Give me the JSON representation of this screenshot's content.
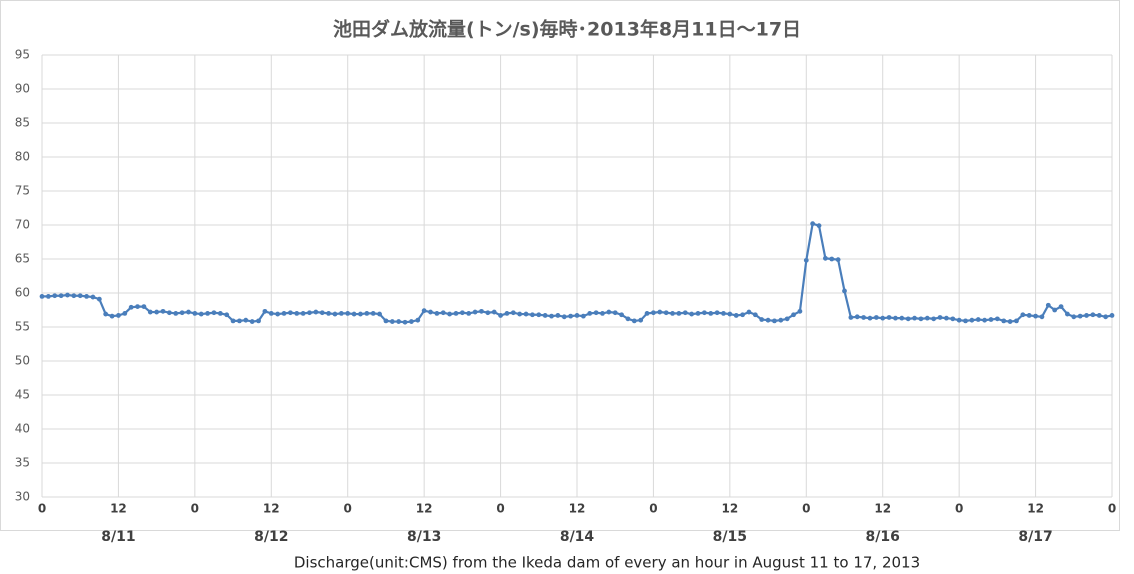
{
  "chart_data": {
    "type": "line",
    "title": "池田ダム放流量(トン/s)毎時･2013年8月11日～17日",
    "caption": "Discharge(unit:CMS) from the Ikeda dam of every an hour in August 11 to 17, 2013",
    "categories": [
      "0",
      null,
      null,
      null,
      null,
      null,
      null,
      null,
      null,
      null,
      null,
      null,
      "12",
      null,
      null,
      null,
      null,
      null,
      null,
      null,
      null,
      null,
      null,
      null,
      "0",
      null,
      null,
      null,
      null,
      null,
      null,
      null,
      null,
      null,
      null,
      null,
      "12",
      null,
      null,
      null,
      null,
      null,
      null,
      null,
      null,
      null,
      null,
      null,
      "0",
      null,
      null,
      null,
      null,
      null,
      null,
      null,
      null,
      null,
      null,
      null,
      "12",
      null,
      null,
      null,
      null,
      null,
      null,
      null,
      null,
      null,
      null,
      null,
      "0",
      null,
      null,
      null,
      null,
      null,
      null,
      null,
      null,
      null,
      null,
      null,
      "12",
      null,
      null,
      null,
      null,
      null,
      null,
      null,
      null,
      null,
      null,
      null,
      "0",
      null,
      null,
      null,
      null,
      null,
      null,
      null,
      null,
      null,
      null,
      null,
      "12",
      null,
      null,
      null,
      null,
      null,
      null,
      null,
      null,
      null,
      null,
      null,
      "0",
      null,
      null,
      null,
      null,
      null,
      null,
      null,
      null,
      null,
      null,
      null,
      "12",
      null,
      null,
      null,
      null,
      null,
      null,
      null,
      null,
      null,
      null,
      null,
      "0",
      null,
      null,
      null,
      null,
      null,
      null,
      null,
      null,
      null,
      null,
      null,
      "12",
      null,
      null,
      null,
      null,
      null,
      null,
      null,
      null,
      null,
      null,
      null,
      "0"
    ],
    "day_labels": [
      "8/11",
      "8/12",
      "8/13",
      "8/14",
      "8/15",
      "8/16",
      "8/17"
    ],
    "series": [
      {
        "name": "放流量",
        "color": "#4a7ebb",
        "values": [
          59.5,
          59.5,
          59.6,
          59.6,
          59.7,
          59.6,
          59.6,
          59.5,
          59.4,
          59.1,
          56.9,
          56.6,
          56.7,
          57.0,
          57.9,
          58.0,
          58.0,
          57.2,
          57.2,
          57.3,
          57.1,
          57.0,
          57.1,
          57.2,
          57.0,
          56.9,
          57.0,
          57.1,
          57.0,
          56.8,
          55.9,
          55.9,
          56.0,
          55.8,
          55.9,
          57.3,
          57.0,
          56.9,
          57.0,
          57.1,
          57.0,
          57.0,
          57.1,
          57.2,
          57.1,
          57.0,
          56.9,
          57.0,
          57.0,
          56.9,
          56.9,
          57.0,
          57.0,
          56.9,
          55.9,
          55.8,
          55.8,
          55.7,
          55.8,
          56.0,
          57.4,
          57.2,
          57.0,
          57.1,
          56.9,
          57.0,
          57.1,
          57.0,
          57.2,
          57.3,
          57.1,
          57.2,
          56.7,
          57.0,
          57.1,
          56.9,
          56.9,
          56.8,
          56.8,
          56.7,
          56.6,
          56.7,
          56.5,
          56.6,
          56.7,
          56.6,
          57.0,
          57.1,
          57.0,
          57.2,
          57.1,
          56.8,
          56.2,
          55.9,
          56.0,
          57.0,
          57.1,
          57.2,
          57.1,
          57.0,
          57.0,
          57.1,
          56.9,
          57.0,
          57.1,
          57.0,
          57.1,
          57.0,
          56.9,
          56.7,
          56.8,
          57.2,
          56.8,
          56.1,
          56.0,
          55.9,
          56.0,
          56.2,
          56.8,
          57.3,
          64.8,
          70.2,
          69.9,
          65.1,
          65.0,
          64.9,
          60.3,
          56.4,
          56.5,
          56.4,
          56.3,
          56.4,
          56.3,
          56.4,
          56.3,
          56.3,
          56.2,
          56.3,
          56.2,
          56.3,
          56.2,
          56.4,
          56.3,
          56.2,
          56.0,
          55.9,
          56.0,
          56.1,
          56.0,
          56.1,
          56.2,
          55.9,
          55.8,
          55.9,
          56.8,
          56.7,
          56.6,
          56.5,
          58.2,
          57.5,
          58.0,
          56.9,
          56.5,
          56.6,
          56.7,
          56.8,
          56.7,
          56.5,
          56.7
        ]
      }
    ],
    "ylim": [
      30,
      95
    ],
    "yticks": [
      30,
      35,
      40,
      45,
      50,
      55,
      60,
      65,
      70,
      75,
      80,
      85,
      90,
      95
    ],
    "grid": true
  }
}
